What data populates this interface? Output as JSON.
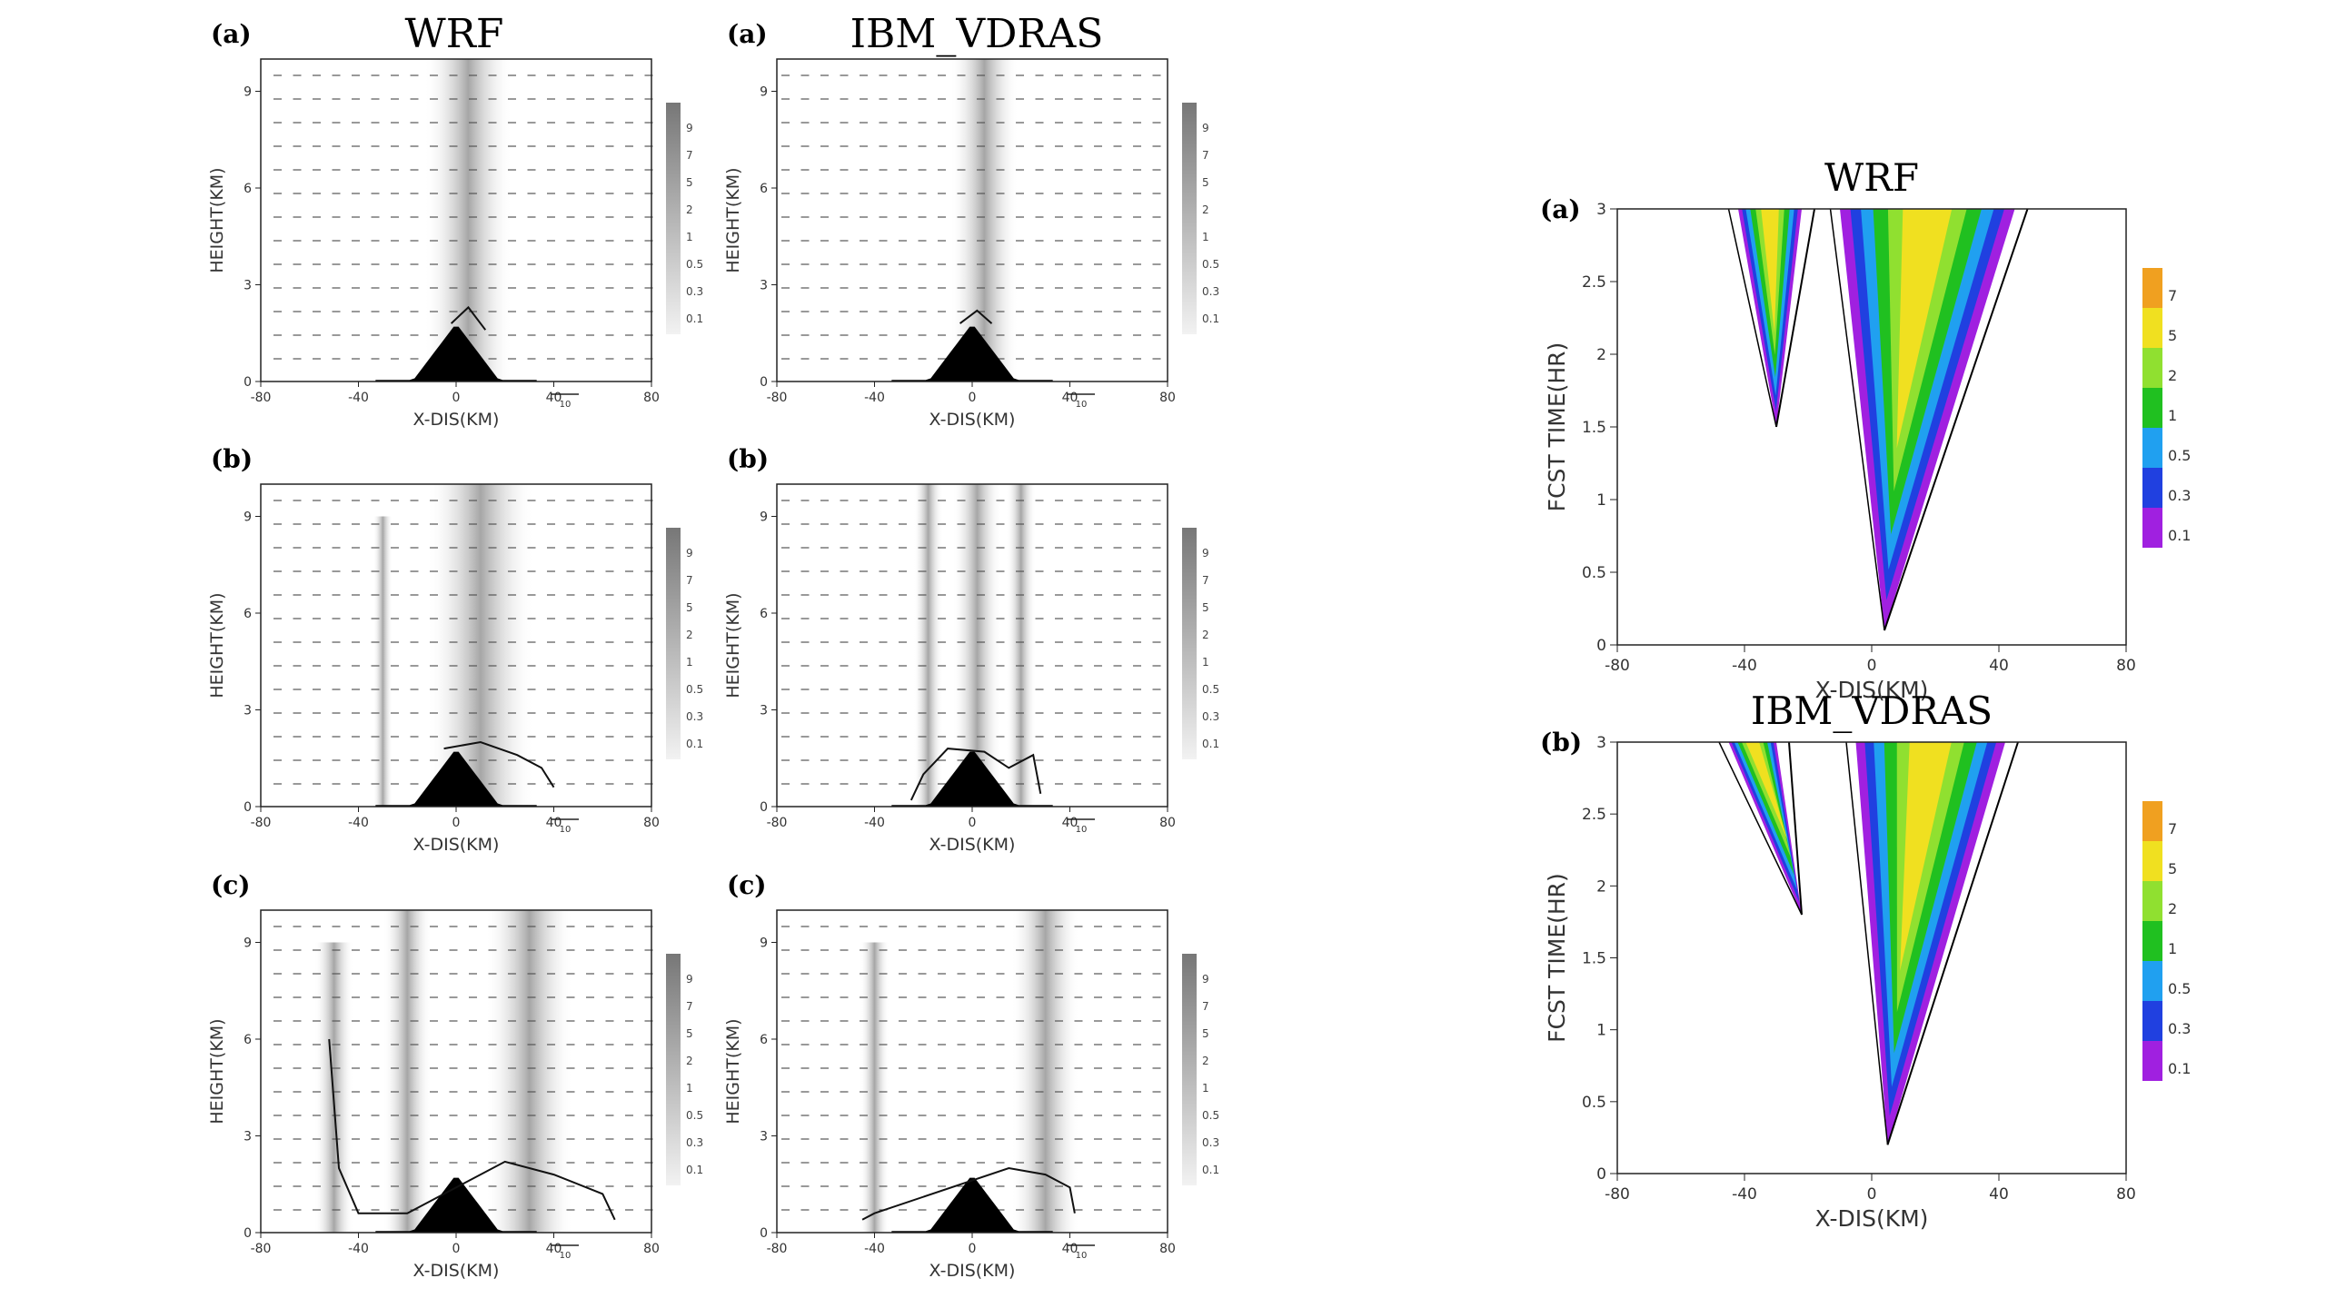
{
  "columns": {
    "wrf_title": "WRF",
    "vdras_title": "IBM_VDRAS"
  },
  "cross_sections": {
    "panel_labels": [
      "(a)",
      "(b)",
      "(c)"
    ],
    "ylabel": "HEIGHT(KM)",
    "xlabel": "X-DIS(KM)",
    "x_ticks": [
      "-80",
      "-40",
      "0",
      "40",
      "80"
    ],
    "y_ticks": [
      "0",
      "3",
      "6",
      "9"
    ],
    "colorbar_labels": [
      "9",
      "7",
      "5",
      "2",
      "1",
      "0.5",
      "0.3",
      "0.1"
    ],
    "vector_ref_label": "10"
  },
  "hovmoller": {
    "titles": [
      "WRF",
      "IBM_VDRAS"
    ],
    "panel_labels": [
      "(a)",
      "(b)"
    ],
    "ylabel": "FCST TIME(HR)",
    "xlabel": "X-DIS(KM)",
    "colorbar_labels": [
      "7",
      "5",
      "2",
      "1",
      "0.5",
      "0.3",
      "0.1"
    ],
    "colorbar_colors": [
      "#f0a020",
      "#f0e020",
      "#90e030",
      "#20c020",
      "#20a0f0",
      "#2040e0",
      "#a020e0"
    ]
  },
  "chart_data": [
    {
      "type": "heatmap",
      "title": "WRF",
      "panel": "(a)",
      "xlabel": "X-DIS(KM)",
      "ylabel": "HEIGHT(KM)",
      "xlim": [
        -80,
        80
      ],
      "ylim": [
        0,
        10
      ],
      "x_ticks": [
        -80,
        -40,
        0,
        40,
        80
      ],
      "y_ticks": [
        0,
        3,
        6,
        9
      ],
      "colorbar_levels": [
        9,
        7,
        5,
        2,
        1,
        0.5,
        0.3,
        0.1
      ],
      "shading": [
        {
          "x_center": 5,
          "x_halfwidth": 18,
          "z_top": 10
        }
      ],
      "terrain_peak_km": 1.8,
      "terrain_halfwidth_km": 18,
      "contour": [
        [
          -2,
          1.8
        ],
        [
          5,
          2.3
        ],
        [
          12,
          1.6
        ]
      ]
    },
    {
      "type": "heatmap",
      "title": "IBM_VDRAS",
      "panel": "(a)",
      "xlabel": "X-DIS(KM)",
      "ylabel": "HEIGHT(KM)",
      "xlim": [
        -80,
        80
      ],
      "ylim": [
        0,
        10
      ],
      "x_ticks": [
        -80,
        -40,
        0,
        40,
        80
      ],
      "y_ticks": [
        0,
        3,
        6,
        9
      ],
      "colorbar_levels": [
        9,
        7,
        5,
        2,
        1,
        0.5,
        0.3,
        0.1
      ],
      "shading": [
        {
          "x_center": 5,
          "x_halfwidth": 14,
          "z_top": 10
        }
      ],
      "terrain_peak_km": 1.8,
      "terrain_halfwidth_km": 18,
      "contour": [
        [
          -5,
          1.8
        ],
        [
          2,
          2.2
        ],
        [
          8,
          1.8
        ]
      ]
    },
    {
      "type": "heatmap",
      "title": "WRF",
      "panel": "(b)",
      "xlabel": "X-DIS(KM)",
      "ylabel": "HEIGHT(KM)",
      "xlim": [
        -80,
        80
      ],
      "ylim": [
        0,
        10
      ],
      "x_ticks": [
        -80,
        -40,
        0,
        40,
        80
      ],
      "y_ticks": [
        0,
        3,
        6,
        9
      ],
      "colorbar_levels": [
        9,
        7,
        5,
        2,
        1,
        0.5,
        0.3,
        0.1
      ],
      "shading": [
        {
          "x_center": -30,
          "x_halfwidth": 4,
          "z_top": 9
        },
        {
          "x_center": 10,
          "x_halfwidth": 22,
          "z_top": 10
        }
      ],
      "terrain_peak_km": 1.8,
      "terrain_halfwidth_km": 18,
      "contour": [
        [
          -5,
          1.8
        ],
        [
          10,
          2.0
        ],
        [
          25,
          1.6
        ],
        [
          35,
          1.2
        ],
        [
          40,
          0.6
        ]
      ]
    },
    {
      "type": "heatmap",
      "title": "IBM_VDRAS",
      "panel": "(b)",
      "xlabel": "X-DIS(KM)",
      "ylabel": "HEIGHT(KM)",
      "xlim": [
        -80,
        80
      ],
      "ylim": [
        0,
        10
      ],
      "x_ticks": [
        -80,
        -40,
        0,
        40,
        80
      ],
      "y_ticks": [
        0,
        3,
        6,
        9
      ],
      "colorbar_levels": [
        9,
        7,
        5,
        2,
        1,
        0.5,
        0.3,
        0.1
      ],
      "shading": [
        {
          "x_center": -18,
          "x_halfwidth": 6,
          "z_top": 10
        },
        {
          "x_center": 2,
          "x_halfwidth": 10,
          "z_top": 10
        },
        {
          "x_center": 20,
          "x_halfwidth": 6,
          "z_top": 10
        }
      ],
      "terrain_peak_km": 1.8,
      "terrain_halfwidth_km": 18,
      "contour": [
        [
          -25,
          0.2
        ],
        [
          -20,
          1.0
        ],
        [
          -10,
          1.8
        ],
        [
          5,
          1.7
        ],
        [
          15,
          1.2
        ],
        [
          25,
          1.6
        ],
        [
          28,
          0.4
        ]
      ]
    },
    {
      "type": "heatmap",
      "title": "WRF",
      "panel": "(c)",
      "xlabel": "X-DIS(KM)",
      "ylabel": "HEIGHT(KM)",
      "xlim": [
        -80,
        80
      ],
      "ylim": [
        0,
        10
      ],
      "x_ticks": [
        -80,
        -40,
        0,
        40,
        80
      ],
      "y_ticks": [
        0,
        3,
        6,
        9
      ],
      "colorbar_levels": [
        9,
        7,
        5,
        2,
        1,
        0.5,
        0.3,
        0.1
      ],
      "shading": [
        {
          "x_center": -50,
          "x_halfwidth": 8,
          "z_top": 9
        },
        {
          "x_center": -20,
          "x_halfwidth": 10,
          "z_top": 10
        },
        {
          "x_center": 30,
          "x_halfwidth": 18,
          "z_top": 10
        }
      ],
      "terrain_peak_km": 1.8,
      "terrain_halfwidth_km": 18,
      "contour": [
        [
          -52,
          6.0
        ],
        [
          -48,
          2.0
        ],
        [
          -40,
          0.6
        ],
        [
          -20,
          0.6
        ],
        [
          20,
          2.2
        ],
        [
          40,
          1.8
        ],
        [
          60,
          1.2
        ],
        [
          65,
          0.4
        ]
      ]
    },
    {
      "type": "heatmap",
      "title": "IBM_VDRAS",
      "panel": "(c)",
      "xlabel": "X-DIS(KM)",
      "ylabel": "HEIGHT(KM)",
      "xlim": [
        -80,
        80
      ],
      "ylim": [
        0,
        10
      ],
      "x_ticks": [
        -80,
        -40,
        0,
        40,
        80
      ],
      "y_ticks": [
        0,
        3,
        6,
        9
      ],
      "colorbar_levels": [
        9,
        7,
        5,
        2,
        1,
        0.5,
        0.3,
        0.1
      ],
      "shading": [
        {
          "x_center": -40,
          "x_halfwidth": 6,
          "z_top": 9
        },
        {
          "x_center": 30,
          "x_halfwidth": 14,
          "z_top": 10
        }
      ],
      "terrain_peak_km": 1.8,
      "terrain_halfwidth_km": 18,
      "contour": [
        [
          -45,
          0.4
        ],
        [
          -40,
          0.6
        ],
        [
          15,
          2.0
        ],
        [
          30,
          1.8
        ],
        [
          40,
          1.4
        ],
        [
          42,
          0.6
        ]
      ]
    },
    {
      "type": "heatmap",
      "title": "WRF",
      "panel": "(a)",
      "xlabel": "X-DIS(KM)",
      "ylabel": "FCST TIME(HR)",
      "xlim": [
        -80,
        80
      ],
      "ylim": [
        0,
        3
      ],
      "x_ticks": [
        -80,
        -40,
        0,
        40,
        80
      ],
      "y_ticks": [
        0,
        0.5,
        1,
        1.5,
        2,
        2.5,
        3
      ],
      "colorbar_levels": [
        7,
        5,
        2,
        1,
        0.5,
        0.3,
        0.1
      ],
      "bands": [
        {
          "name": "main",
          "bottom": [
            4,
            0.1
          ],
          "top_left": [
            -10,
            3.0
          ],
          "top_right": [
            45,
            3.0
          ]
        },
        {
          "name": "west",
          "bottom": [
            -30,
            1.5
          ],
          "top_left": [
            -42,
            3.0
          ],
          "top_right": [
            -22,
            3.0
          ]
        }
      ]
    },
    {
      "type": "heatmap",
      "title": "IBM_VDRAS",
      "panel": "(b)",
      "xlabel": "X-DIS(KM)",
      "ylabel": "FCST TIME(HR)",
      "xlim": [
        -80,
        80
      ],
      "ylim": [
        0,
        3
      ],
      "x_ticks": [
        -80,
        -40,
        0,
        40,
        80
      ],
      "y_ticks": [
        0,
        0.5,
        1,
        1.5,
        2,
        2.5,
        3
      ],
      "colorbar_levels": [
        7,
        5,
        2,
        1,
        0.5,
        0.3,
        0.1
      ],
      "bands": [
        {
          "name": "main",
          "bottom": [
            5,
            0.2
          ],
          "top_left": [
            -5,
            3.0
          ],
          "top_right": [
            42,
            3.0
          ]
        },
        {
          "name": "west",
          "bottom": [
            -22,
            1.8
          ],
          "top_left": [
            -45,
            3.0
          ],
          "top_right": [
            -30,
            3.0
          ]
        }
      ]
    }
  ]
}
